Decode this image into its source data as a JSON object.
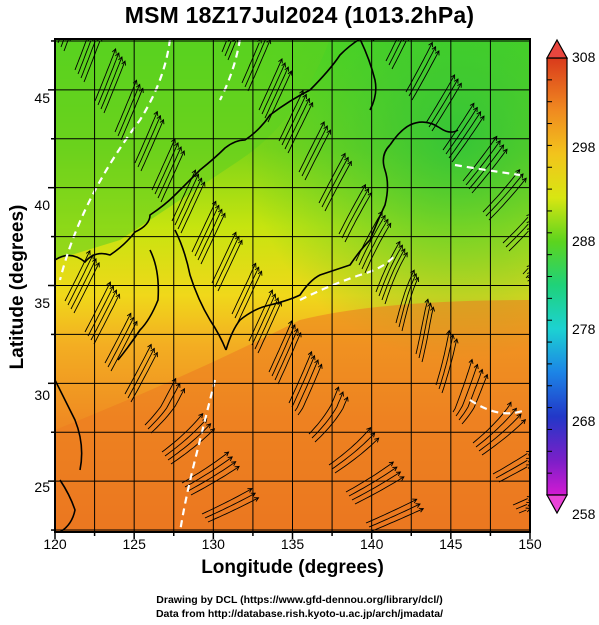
{
  "title": "MSM 18Z17Jul2024 (1013.2hPa)",
  "xlabel": "Longitude (degrees)",
  "ylabel": "Latitude  (degrees)",
  "credits": {
    "line1": "Drawing by DCL (https://www.gfd-dennou.org/library/dcl/)",
    "line2": "Data from http://database.rish.kyoto-u.ac.jp/arch/jmadata/"
  },
  "map": {
    "lon_range": [
      120,
      150
    ],
    "lat_range": [
      22.4,
      47.6
    ],
    "x_ticks": [
      "120",
      "125",
      "130",
      "135",
      "140",
      "145",
      "150"
    ],
    "y_ticks": [
      "25",
      "30",
      "35",
      "40",
      "45"
    ],
    "field": "temperature shading with wind streamlines",
    "white_contour": "dashed white isotherm"
  },
  "colorbar": {
    "labels": [
      "308",
      "298",
      "288",
      "278",
      "268",
      "258"
    ],
    "min": 258,
    "max": 308,
    "colors": [
      "#d21ad2",
      "#3a1fbf",
      "#1e54e6",
      "#1cb4e6",
      "#1fd2a0",
      "#22c83a",
      "#7cd418",
      "#d8e612",
      "#f2c41c",
      "#f38a20",
      "#e85a20",
      "#d93a1c"
    ]
  }
}
